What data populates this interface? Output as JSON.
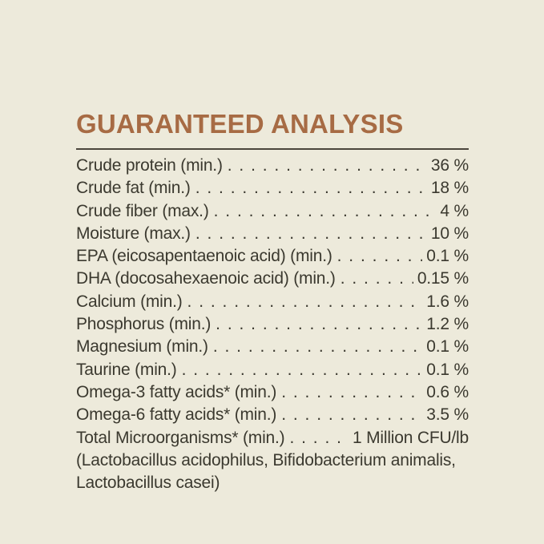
{
  "page": {
    "background_color": "#edeadb",
    "accent_color": "#a76b44",
    "text_color": "#3b392f"
  },
  "header": {
    "title": "GUARANTEED ANALYSIS"
  },
  "analysis": {
    "rows": [
      {
        "label": "Crude protein (min.)",
        "value": "36 %"
      },
      {
        "label": "Crude fat (min.)",
        "value": "18 %"
      },
      {
        "label": "Crude fiber (max.)",
        "value": "4 %"
      },
      {
        "label": "Moisture (max.)",
        "value": "10 %"
      },
      {
        "label": "EPA (eicosapentaenoic acid) (min.)",
        "value": "0.1 %"
      },
      {
        "label": "DHA (docosahexaenoic acid) (min.)",
        "value": "0.15 %"
      },
      {
        "label": "Calcium (min.)",
        "value": "1.6 %"
      },
      {
        "label": "Phosphorus (min.)",
        "value": "1.2 %"
      },
      {
        "label": "Magnesium (min.)",
        "value": "0.1 %"
      },
      {
        "label": "Taurine (min.)",
        "value": "0.1 %"
      },
      {
        "label": "Omega-3 fatty acids* (min.)",
        "value": "0.6 %"
      },
      {
        "label": "Omega-6 fatty acids* (min.)",
        "value": "3.5 %"
      },
      {
        "label": "Total Microorganisms* (min.)",
        "value": "1 Million CFU/lb"
      }
    ],
    "footnote_lines": [
      "(Lactobacillus acidophilus, Bifidobacterium animalis,",
      "Lactobacillus casei)"
    ]
  }
}
